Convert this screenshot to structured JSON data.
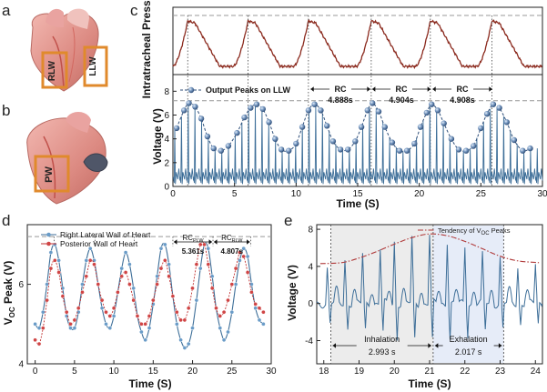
{
  "panels": {
    "a": {
      "letter": "a",
      "labels": [
        "RLW",
        "LLW"
      ]
    },
    "b": {
      "letter": "b",
      "labels": [
        "PW"
      ]
    },
    "c": {
      "letter": "c"
    },
    "d": {
      "letter": "d"
    },
    "e": {
      "letter": "e"
    }
  },
  "chart_data": [
    {
      "id": "c-top",
      "type": "line",
      "ylabel": "Intratracheal Pressure",
      "xlim": [
        0,
        30
      ],
      "peak_times": [
        1.2,
        6.1,
        11.0,
        16.1,
        20.9,
        25.9
      ],
      "color": "#8b2a1e"
    },
    {
      "id": "c-bottom",
      "type": "line",
      "xlabel": "Time (S)",
      "ylabel": "Voltage (V)",
      "xlim": [
        0,
        30
      ],
      "ylim": [
        0,
        9.4
      ],
      "xticks": [
        0,
        5,
        10,
        15,
        20,
        25,
        30
      ],
      "yticks": [
        0,
        2,
        4,
        6,
        8
      ],
      "reference_line": 7.2,
      "legend": "Output Peaks on LLW",
      "rc_annotations": [
        {
          "label": "RC",
          "value": "4.888s",
          "x0": 11.1,
          "x1": 16.1
        },
        {
          "label": "RC",
          "value": "4.904s",
          "x0": 16.1,
          "x1": 21.0
        },
        {
          "label": "RC",
          "value": "4.908s",
          "x0": 21.0,
          "x1": 26.0
        }
      ],
      "peak_points": [
        [
          0.3,
          4.9
        ],
        [
          0.9,
          6.4
        ],
        [
          1.3,
          7.0
        ],
        [
          1.8,
          6.7
        ],
        [
          2.3,
          5.7
        ],
        [
          2.8,
          4.2
        ],
        [
          3.3,
          3.2
        ],
        [
          3.9,
          3.0
        ],
        [
          4.5,
          3.4
        ],
        [
          5.2,
          4.5
        ],
        [
          5.8,
          5.8
        ],
        [
          6.3,
          6.6
        ],
        [
          6.8,
          6.9
        ],
        [
          7.3,
          6.5
        ],
        [
          7.8,
          5.4
        ],
        [
          8.3,
          4.0
        ],
        [
          8.8,
          3.1
        ],
        [
          9.4,
          3.0
        ],
        [
          10.0,
          3.6
        ],
        [
          10.5,
          5.0
        ],
        [
          11.0,
          6.4
        ],
        [
          11.5,
          6.9
        ],
        [
          12.0,
          6.4
        ],
        [
          12.5,
          5.1
        ],
        [
          13.0,
          3.8
        ],
        [
          13.6,
          3.1
        ],
        [
          14.2,
          3.1
        ],
        [
          14.8,
          3.8
        ],
        [
          15.3,
          5.0
        ],
        [
          15.8,
          6.4
        ],
        [
          16.2,
          7.0
        ],
        [
          16.7,
          6.3
        ],
        [
          17.2,
          5.0
        ],
        [
          17.8,
          3.7
        ],
        [
          18.4,
          3.0
        ],
        [
          19.0,
          3.0
        ],
        [
          19.6,
          3.6
        ],
        [
          20.1,
          5.0
        ],
        [
          20.6,
          6.2
        ],
        [
          21.0,
          6.9
        ],
        [
          21.5,
          6.4
        ],
        [
          22.0,
          5.3
        ],
        [
          22.6,
          4.0
        ],
        [
          23.2,
          3.1
        ],
        [
          23.8,
          3.0
        ],
        [
          24.4,
          3.4
        ],
        [
          25.0,
          4.9
        ],
        [
          25.5,
          6.1
        ],
        [
          26.0,
          6.9
        ],
        [
          26.5,
          6.6
        ],
        [
          27.1,
          5.4
        ],
        [
          27.7,
          3.9
        ],
        [
          28.4,
          3.0
        ],
        [
          29.0,
          3.2
        ]
      ]
    },
    {
      "id": "d",
      "type": "line",
      "xlabel": "Time (S)",
      "ylabel": "V",
      "ylabel_sub": "OC",
      "ylabel_tail": " Peak (V)",
      "xlim": [
        -1,
        30
      ],
      "ylim": [
        4,
        7.5
      ],
      "xticks": [
        0,
        5,
        10,
        15,
        20,
        25,
        30
      ],
      "yticks": [
        4,
        6
      ],
      "reference_line": 7.2,
      "series": [
        {
          "name": "Right Lateral Wall of Heart",
          "color": "#3d6e98",
          "marker": "#6a9cc8",
          "x": [
            0.0,
            0.5,
            1.0,
            1.5,
            2.0,
            2.5,
            3.0,
            3.5,
            4.0,
            4.5,
            5.0,
            5.5,
            6.0,
            6.5,
            7.0,
            7.5,
            8.0,
            8.5,
            9.0,
            9.5,
            10.0,
            10.5,
            11.0,
            11.5,
            12.0,
            12.5,
            13.0,
            13.5,
            14.0,
            14.5,
            15.0,
            15.5,
            16.0,
            16.5,
            17.0,
            17.5,
            18.0,
            18.5,
            19.0,
            19.5,
            20.0,
            20.5,
            21.0,
            21.5,
            22.0,
            22.5,
            23.0,
            23.5,
            24.0,
            24.5,
            25.0,
            25.5,
            26.0,
            26.5,
            27.0,
            27.5,
            28.0,
            28.5,
            29.0
          ],
          "y": [
            5.0,
            4.9,
            5.3,
            6.0,
            6.8,
            7.0,
            6.6,
            5.9,
            5.2,
            4.9,
            4.9,
            5.3,
            6.0,
            6.6,
            6.9,
            6.6,
            6.0,
            5.4,
            5.0,
            4.9,
            5.2,
            5.8,
            6.4,
            6.8,
            6.5,
            5.9,
            5.2,
            4.8,
            4.6,
            4.9,
            5.5,
            6.2,
            6.9,
            7.0,
            6.5,
            5.7,
            5.0,
            4.6,
            4.4,
            4.5,
            4.9,
            5.6,
            6.4,
            7.0,
            6.9,
            6.2,
            5.4,
            4.9,
            4.6,
            4.8,
            5.3,
            6.0,
            6.6,
            6.9,
            6.7,
            6.0,
            5.4,
            5.1,
            5.0
          ]
        },
        {
          "name": "Posterior Wall of Heart",
          "color": "#c03030",
          "marker": "#d04545",
          "x": [
            0.0,
            0.5,
            1.0,
            1.5,
            2.0,
            2.5,
            3.0,
            3.5,
            4.0,
            4.5,
            5.0,
            5.5,
            6.0,
            6.5,
            7.0,
            7.5,
            8.0,
            8.5,
            9.0,
            9.5,
            10.0,
            10.5,
            11.0,
            11.5,
            12.0,
            12.5,
            13.0,
            13.5,
            14.0,
            14.5,
            15.0,
            15.5,
            16.0,
            16.5,
            17.0,
            17.5,
            18.0,
            18.5,
            19.0,
            19.5,
            20.0,
            20.5,
            21.0,
            21.5,
            22.0,
            22.5,
            23.0,
            23.5,
            24.0,
            24.5,
            25.0,
            25.5,
            26.0,
            26.5,
            27.0,
            27.5,
            28.0,
            28.5,
            29.0
          ],
          "y": [
            4.6,
            4.5,
            4.9,
            5.6,
            6.4,
            6.6,
            6.3,
            5.7,
            5.3,
            5.0,
            5.1,
            5.4,
            5.8,
            6.2,
            6.6,
            6.5,
            6.0,
            5.6,
            5.3,
            5.2,
            5.4,
            5.8,
            6.2,
            6.3,
            6.0,
            5.6,
            5.2,
            5.0,
            5.0,
            5.2,
            5.6,
            6.0,
            6.4,
            6.6,
            6.2,
            5.7,
            5.3,
            5.1,
            5.1,
            5.4,
            5.9,
            6.5,
            7.0,
            7.0,
            6.5,
            5.9,
            5.4,
            5.2,
            5.3,
            5.6,
            6.0,
            6.4,
            6.8,
            6.7,
            6.3,
            5.8,
            5.5,
            5.4,
            5.3
          ]
        }
      ],
      "rc_annotations": [
        {
          "label": "RC",
          "sub": "PLW",
          "value": "5.361s"
        },
        {
          "label": "RC",
          "sub": "RLW",
          "value": "4.807s"
        }
      ]
    },
    {
      "id": "e",
      "type": "line",
      "xlabel": "Time (S)",
      "ylabel": "Voltage (V)",
      "xlim": [
        17.8,
        24.2
      ],
      "ylim": [
        -6.5,
        8.5
      ],
      "xticks": [
        18,
        19,
        20,
        21,
        22,
        23,
        24
      ],
      "yticks": [
        -4,
        0,
        4,
        8
      ],
      "legend": "Tendency of V",
      "legend_sub": "OC",
      "legend_tail": " Peaks",
      "phases": [
        {
          "label": "Inhalation",
          "value": "2.993 s",
          "x0": 18.2,
          "x1": 21.1
        },
        {
          "label": "Exhalation",
          "value": "2.017 s",
          "x0": 21.1,
          "x1": 23.1
        }
      ],
      "beat_times": [
        18.1,
        18.6,
        19.1,
        19.6,
        20.0,
        20.5,
        21.0,
        21.5,
        22.0,
        22.5,
        23.0,
        23.5,
        24.0
      ],
      "beat_peaks": [
        3.8,
        4.8,
        5.3,
        5.9,
        6.7,
        7.0,
        7.4,
        6.8,
        6.1,
        5.2,
        4.9,
        4.0,
        4.2
      ],
      "tendency": {
        "x": [
          17.9,
          18.5,
          19.0,
          19.5,
          20.0,
          20.5,
          21.0,
          21.5,
          22.0,
          22.5,
          23.0,
          23.5,
          24.1
        ],
        "y": [
          4.3,
          4.4,
          4.9,
          5.6,
          6.4,
          7.1,
          7.5,
          7.3,
          6.7,
          5.9,
          5.1,
          4.6,
          4.4
        ]
      }
    }
  ]
}
